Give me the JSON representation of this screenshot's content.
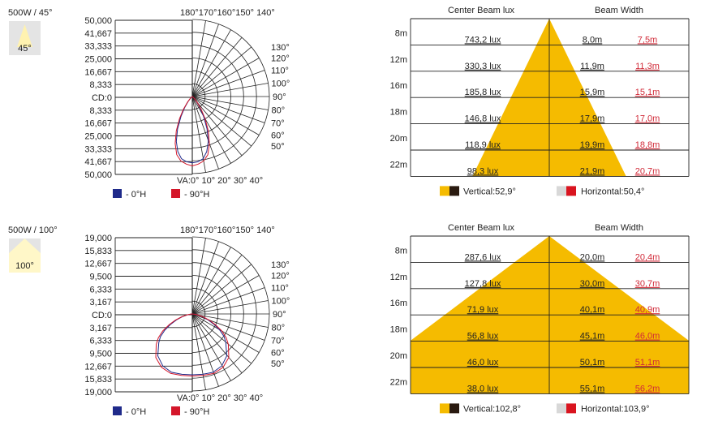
{
  "chart_data": [
    {
      "type": "polar",
      "title": "500W / 45°",
      "badge": "45°",
      "r_labels": [
        "50,000",
        "41,667",
        "33,333",
        "25,000",
        "16,667",
        "8,333",
        "CD:0",
        "8,333",
        "16,667",
        "25,000",
        "33,333",
        "41,667",
        "50,000"
      ],
      "top_angle_labels": "180°170°160°150° 140°",
      "right_angle_labels": [
        "130°",
        "120°",
        "110°",
        "100°",
        "90°",
        "80°",
        "70°",
        "60°",
        "50°"
      ],
      "bottom_angle_labels": "VA:0°  10° 20° 30° 40°",
      "rmax": 50000,
      "legend": [
        "- 0°H",
        "- 90°H"
      ],
      "colors": {
        "c0": "#1f2a8a",
        "c90": "#d4162a"
      },
      "series": [
        {
          "name": "- 0°H",
          "angles": [
            0,
            5,
            10,
            15,
            20,
            25,
            30,
            35,
            40,
            45,
            50,
            55,
            60
          ],
          "values": [
            43000,
            42500,
            41000,
            37000,
            31000,
            23000,
            15000,
            9000,
            4500,
            2000,
            800,
            300,
            0
          ]
        },
        {
          "name": "- 90°H",
          "angles": [
            0,
            5,
            10,
            15,
            20,
            25,
            30,
            35,
            40,
            45,
            50,
            55,
            60
          ],
          "values": [
            45000,
            44000,
            42500,
            39000,
            32500,
            24500,
            16500,
            10000,
            5000,
            2200,
            900,
            300,
            0
          ]
        }
      ]
    },
    {
      "type": "table",
      "header": [
        "Center Beam lux",
        "Beam Width"
      ],
      "rows": [
        {
          "d": "8m",
          "lux": "743,2 lux",
          "v": "8,0m",
          "h": "7,5m"
        },
        {
          "d": "12m",
          "lux": "330,3 lux",
          "v": "11,9m",
          "h": "11,3m"
        },
        {
          "d": "16m",
          "lux": "185,8 lux",
          "v": "15,9m",
          "h": "15,1m"
        },
        {
          "d": "18m",
          "lux": "146,8 lux",
          "v": "17,9m",
          "h": "17,0m"
        },
        {
          "d": "20m",
          "lux": "118,9 lux",
          "v": "19,9m",
          "h": "18,8m"
        },
        {
          "d": "22m",
          "lux": "98,3 lux",
          "v": "21,9m",
          "h": "20,7m"
        }
      ],
      "vertical_angle": 52.9,
      "horizontal_angle": 50.4,
      "vertical_label": "Vertical:52,9°",
      "horizontal_label": "Horizontal:50,4°",
      "colors": {
        "fill": "#f5bb00",
        "width": "#d12a38"
      }
    },
    {
      "type": "polar",
      "title": "500W / 100°",
      "badge": "100°",
      "r_labels": [
        "19,000",
        "15,833",
        "12,667",
        "9,500",
        "6,333",
        "3,167",
        "CD:0",
        "3,167",
        "6,333",
        "9,500",
        "12,667",
        "15,833",
        "19,000"
      ],
      "top_angle_labels": "180°170°160°150° 140°",
      "right_angle_labels": [
        "130°",
        "120°",
        "110°",
        "100°",
        "90°",
        "80°",
        "70°",
        "60°",
        "50°"
      ],
      "bottom_angle_labels": "VA:0°  10° 20° 30° 40°",
      "rmax": 19000,
      "legend": [
        "- 0°H",
        "- 90°H"
      ],
      "colors": {
        "c0": "#1f2a8a",
        "c90": "#d4162a"
      },
      "series": [
        {
          "name": "- 0°H",
          "angles": [
            0,
            10,
            20,
            30,
            40,
            50,
            55,
            60,
            65,
            70,
            75,
            80,
            85,
            90
          ],
          "values": [
            15000,
            15100,
            15300,
            14800,
            13500,
            11000,
            9800,
            8000,
            6000,
            4200,
            2600,
            1200,
            400,
            0
          ]
        },
        {
          "name": "- 90°H",
          "angles": [
            0,
            10,
            20,
            30,
            40,
            50,
            55,
            60,
            65,
            70,
            75,
            80,
            85,
            90
          ],
          "values": [
            15300,
            15400,
            15600,
            15200,
            14000,
            11600,
            10200,
            8400,
            6300,
            4400,
            2700,
            1300,
            450,
            0
          ]
        }
      ]
    },
    {
      "type": "table",
      "header": [
        "Center Beam lux",
        "Beam Width"
      ],
      "rows": [
        {
          "d": "8m",
          "lux": "287,6 lux",
          "v": "20,0m",
          "h": "20,4m"
        },
        {
          "d": "12m",
          "lux": "127,8 lux",
          "v": "30,0m",
          "h": "30,7m"
        },
        {
          "d": "16m",
          "lux": "71,9 lux",
          "v": "40,1m",
          "h": "40,9m"
        },
        {
          "d": "18m",
          "lux": "56,8 lux",
          "v": "45,1m",
          "h": "46,0m"
        },
        {
          "d": "20m",
          "lux": "46,0 lux",
          "v": "50,1m",
          "h": "51,1m"
        },
        {
          "d": "22m",
          "lux": "38,0 lux",
          "v": "55,1m",
          "h": "56,2m"
        }
      ],
      "vertical_angle": 102.8,
      "horizontal_angle": 103.9,
      "vertical_label": "Vertical:102,8°",
      "horizontal_label": "Horizontal:103,9°",
      "colors": {
        "fill": "#f5bb00",
        "width": "#d12a38"
      }
    }
  ]
}
